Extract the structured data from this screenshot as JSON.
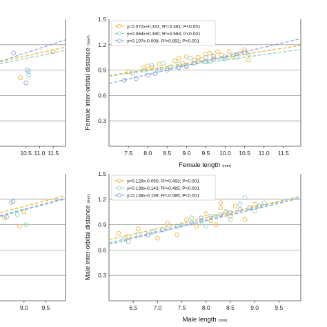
{
  "colors": {
    "orange": "#f0b43c",
    "teal": "#8ed3bf",
    "blue": "#8fa3d8",
    "grid": "#9a9a9a",
    "axis": "#444444"
  },
  "chart_data": [
    {
      "id": "left-top",
      "type": "scatter",
      "partial": true,
      "xlim": [
        9.55,
        11.95
      ],
      "ylim": [
        0,
        1.5
      ],
      "xticks": [
        "10.5",
        "11.0",
        "11.5"
      ],
      "xtick_values": [
        10.5,
        11.0,
        11.5
      ],
      "yticks": [],
      "ytick_values": [],
      "gridlines": [
        0.3,
        0.6,
        0.9,
        1.2
      ],
      "series": [
        {
          "color": "orange",
          "points": [
            [
              10.3,
              0.81
            ],
            [
              11.5,
              1.12
            ]
          ],
          "line": [
            0.311,
            0.072
          ]
        },
        {
          "color": "teal",
          "points": [
            [
              10.6,
              0.84
            ],
            [
              10.6,
              0.88
            ]
          ],
          "line": [
            0.345,
            0.066
          ]
        },
        {
          "color": "blue",
          "points": [
            [
              10.05,
              1.1
            ],
            [
              10.5,
              0.75
            ],
            [
              10.55,
              0.9
            ]
          ],
          "line": [
            -0.02,
            0.107
          ]
        }
      ]
    },
    {
      "id": "right-top",
      "type": "scatter",
      "xlim": [
        7.0,
        11.95
      ],
      "ylim": [
        0,
        1.5
      ],
      "xticks": [
        "7.5",
        "8.0",
        "8.5",
        "9.0",
        "9.5",
        "10.0",
        "10.5",
        "11.0",
        "11.5"
      ],
      "xtick_values": [
        7.5,
        8.0,
        8.5,
        9.0,
        9.5,
        10.0,
        10.5,
        11.0,
        11.5
      ],
      "yticks": [
        "0.3",
        "0.6",
        "0.9",
        "1.2",
        "1.5"
      ],
      "ytick_values": [
        0.3,
        0.6,
        0.9,
        1.2,
        1.5
      ],
      "gridlines": [
        0.3,
        0.6,
        0.9,
        1.2
      ],
      "xlabel": "Female length",
      "xunit": "(mm)",
      "ylabel": "Female inter-orbital distance",
      "yunit": "(mm²)",
      "legend": [
        {
          "color": "orange",
          "text": "y=0.072x+0.331; R²=0.481; P<0.001"
        },
        {
          "color": "teal",
          "text": "y=0.064x+0.380; R²=0.584; P<0.001"
        },
        {
          "color": "blue",
          "text": "y=0.107x-0.008; R²=0.892; P<0.001"
        }
      ],
      "series": [
        {
          "color": "orange",
          "line": [
            0.331,
            0.072
          ],
          "points": [
            [
              7.5,
              0.88
            ],
            [
              7.9,
              0.93
            ],
            [
              8.0,
              0.95
            ],
            [
              8.1,
              0.93
            ],
            [
              8.3,
              0.97
            ],
            [
              8.5,
              0.92
            ],
            [
              8.7,
              1.01
            ],
            [
              8.8,
              1.04
            ],
            [
              8.9,
              0.98
            ],
            [
              9.0,
              1.06
            ],
            [
              9.2,
              1.02
            ],
            [
              9.3,
              1.05
            ],
            [
              9.4,
              1.03
            ],
            [
              9.5,
              1.09
            ],
            [
              9.6,
              1.1
            ],
            [
              9.7,
              1.06
            ],
            [
              9.8,
              1.12
            ],
            [
              9.9,
              1.08
            ],
            [
              10.1,
              1.12
            ],
            [
              10.2,
              1.06
            ],
            [
              10.4,
              1.1
            ],
            [
              10.5,
              1.14
            ],
            [
              10.6,
              1.02
            ]
          ]
        },
        {
          "color": "teal",
          "line": [
            0.38,
            0.064
          ],
          "points": [
            [
              7.6,
              0.86
            ],
            [
              7.9,
              0.9
            ],
            [
              8.1,
              0.96
            ],
            [
              8.3,
              0.9
            ],
            [
              8.4,
              0.98
            ],
            [
              8.6,
              0.94
            ],
            [
              8.8,
              0.97
            ],
            [
              9.0,
              0.94
            ],
            [
              9.1,
              1.04
            ],
            [
              9.3,
              1.0
            ],
            [
              9.5,
              1.05
            ],
            [
              9.6,
              1.0
            ],
            [
              9.7,
              1.07
            ],
            [
              9.9,
              1.04
            ],
            [
              10.0,
              1.03
            ],
            [
              10.2,
              1.08
            ],
            [
              10.3,
              1.05
            ],
            [
              10.6,
              1.09
            ]
          ]
        },
        {
          "color": "blue",
          "line": [
            -0.008,
            0.107
          ],
          "points": [
            [
              7.4,
              0.78
            ],
            [
              7.7,
              0.8
            ],
            [
              8.0,
              0.84
            ],
            [
              8.2,
              0.86
            ],
            [
              8.5,
              0.9
            ],
            [
              8.8,
              0.93
            ],
            [
              9.0,
              0.95
            ],
            [
              9.2,
              0.98
            ],
            [
              9.5,
              1.0
            ],
            [
              9.7,
              1.03
            ],
            [
              10.0,
              1.06
            ],
            [
              10.3,
              1.09
            ],
            [
              10.5,
              1.11
            ]
          ]
        }
      ]
    },
    {
      "id": "left-bottom",
      "type": "scatter",
      "partial": true,
      "xlim": [
        8.45,
        9.95
      ],
      "ylim": [
        0,
        1.5
      ],
      "xticks": [
        "9.0",
        "9.5"
      ],
      "xtick_values": [
        9.0,
        9.5
      ],
      "yticks": [],
      "ytick_values": [],
      "gridlines": [
        0.3,
        0.6,
        0.9,
        1.2
      ],
      "series": [
        {
          "color": "orange",
          "points": [
            [
              8.55,
              0.98
            ],
            [
              8.9,
              0.88
            ],
            [
              9.0,
              1.05
            ]
          ],
          "line": [
            -0.1,
            0.135
          ]
        },
        {
          "color": "teal",
          "points": [
            [
              8.7,
              1.16
            ],
            [
              8.85,
              1.02
            ],
            [
              9.05,
              0.9
            ]
          ],
          "line": [
            -0.17,
            0.138
          ]
        },
        {
          "color": "blue",
          "points": [
            [
              8.75,
              1.17
            ],
            [
              8.6,
              0.99
            ]
          ],
          "line": [
            -0.16,
            0.138
          ]
        }
      ]
    },
    {
      "id": "right-bottom",
      "type": "scatter",
      "xlim": [
        6.0,
        9.95
      ],
      "ylim": [
        0,
        1.5
      ],
      "xticks": [
        "6.5",
        "7.0",
        "7.5",
        "8.0",
        "8.5",
        "9.0",
        "9.5"
      ],
      "xtick_values": [
        6.5,
        7.0,
        7.5,
        8.0,
        8.5,
        9.0,
        9.5
      ],
      "yticks": [
        "0.3",
        "0.6",
        "0.9",
        "1.2",
        "1.5"
      ],
      "ytick_values": [
        0.3,
        0.6,
        0.9,
        1.2,
        1.5
      ],
      "gridlines": [
        0.3,
        0.6,
        0.9,
        1.2
      ],
      "xlabel": "Male length",
      "xunit": "(mm)",
      "ylabel": "Male inter-orbital distance",
      "yunit": "(mm)",
      "legend": [
        {
          "color": "orange",
          "text": "y=0.129x-0.050; R²=0.493; P<0.001"
        },
        {
          "color": "teal",
          "text": "y=0.138x-0.143; R²=0.485; P<0.001"
        },
        {
          "color": "blue",
          "text": "y=0.138x-0.159; R²=0.585; P<0.001"
        }
      ],
      "series": [
        {
          "color": "orange",
          "line": [
            -0.05,
            0.129
          ],
          "points": [
            [
              6.2,
              0.8
            ],
            [
              6.4,
              0.76
            ],
            [
              6.6,
              0.85
            ],
            [
              6.9,
              0.82
            ],
            [
              7.0,
              0.74
            ],
            [
              7.2,
              0.92
            ],
            [
              7.4,
              0.78
            ],
            [
              7.6,
              0.96
            ],
            [
              7.8,
              0.88
            ],
            [
              8.0,
              1.03
            ],
            [
              8.1,
              0.95
            ],
            [
              8.2,
              0.9
            ],
            [
              8.3,
              1.1
            ],
            [
              8.4,
              1.04
            ],
            [
              8.5,
              1.0
            ],
            [
              8.6,
              1.12
            ],
            [
              8.8,
              0.96
            ],
            [
              8.9,
              1.1
            ],
            [
              9.0,
              1.14
            ],
            [
              8.3,
              1.16
            ]
          ]
        },
        {
          "color": "teal",
          "line": [
            -0.143,
            0.138
          ],
          "points": [
            [
              6.3,
              0.72
            ],
            [
              6.6,
              0.78
            ],
            [
              6.9,
              0.82
            ],
            [
              7.2,
              0.86
            ],
            [
              7.5,
              0.9
            ],
            [
              7.7,
              0.98
            ],
            [
              7.9,
              0.94
            ],
            [
              8.0,
              0.88
            ],
            [
              8.2,
              1.0
            ],
            [
              8.4,
              1.06
            ],
            [
              8.5,
              0.96
            ],
            [
              8.7,
              1.14
            ],
            [
              8.8,
              1.22
            ],
            [
              9.0,
              1.06
            ],
            [
              9.2,
              1.16
            ]
          ]
        },
        {
          "color": "blue",
          "line": [
            -0.159,
            0.138
          ],
          "points": [
            [
              6.4,
              0.7
            ],
            [
              6.8,
              0.78
            ],
            [
              7.1,
              0.84
            ],
            [
              7.4,
              0.88
            ],
            [
              7.7,
              0.92
            ],
            [
              7.9,
              0.98
            ],
            [
              8.1,
              1.0
            ],
            [
              8.3,
              1.02
            ],
            [
              8.5,
              1.04
            ],
            [
              8.7,
              1.08
            ],
            [
              8.9,
              1.1
            ],
            [
              9.1,
              1.12
            ]
          ]
        }
      ]
    }
  ]
}
